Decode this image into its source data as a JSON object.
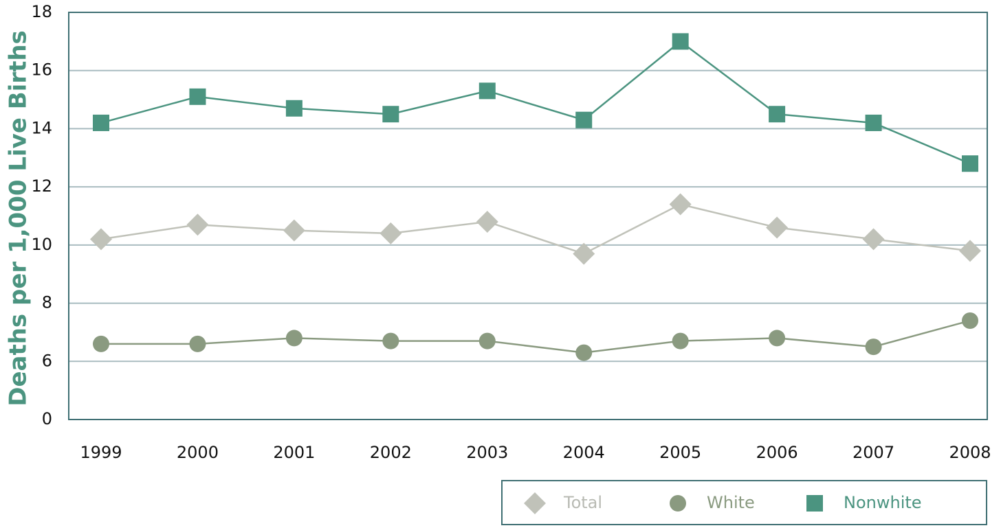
{
  "chart_data": {
    "type": "line",
    "y_label": "Deaths per 1,000 Live Births",
    "categories": [
      "1999",
      "2000",
      "2001",
      "2002",
      "2003",
      "2004",
      "2005",
      "2006",
      "2007",
      "2008"
    ],
    "series": [
      {
        "name": "Total",
        "color": "#c0c2b9",
        "marker": "diamond",
        "values": [
          10.2,
          10.7,
          10.5,
          10.4,
          10.8,
          9.7,
          11.4,
          10.6,
          10.2,
          9.8
        ]
      },
      {
        "name": "White",
        "color": "#8a9a80",
        "marker": "circle",
        "values": [
          6.6,
          6.6,
          6.8,
          6.7,
          6.7,
          6.3,
          6.7,
          6.8,
          6.5,
          7.4
        ]
      },
      {
        "name": "Nonwhite",
        "color": "#4b9480",
        "marker": "square",
        "values": [
          14.2,
          15.1,
          14.7,
          14.5,
          15.3,
          14.3,
          17.0,
          14.5,
          14.2,
          12.8
        ]
      }
    ],
    "ylim": [
      0,
      18
    ],
    "yticks": [
      0,
      6,
      8,
      10,
      12,
      14,
      16,
      18
    ],
    "grid": true
  }
}
